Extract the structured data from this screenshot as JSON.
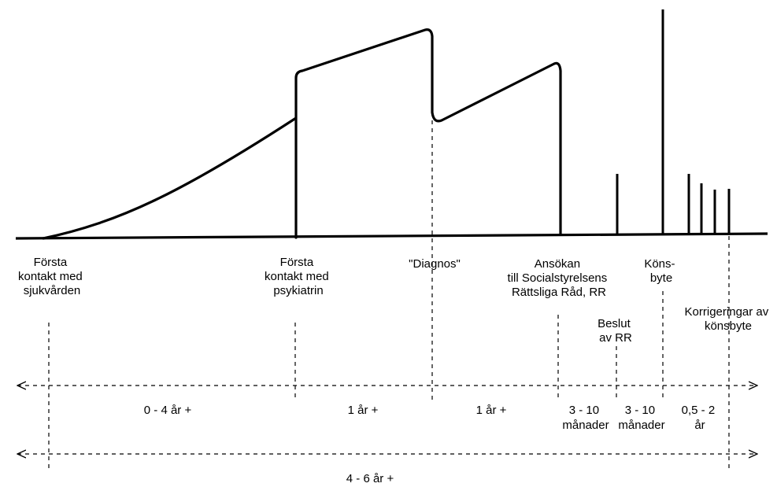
{
  "events": [
    {
      "id": "forsta-kontakt-sjukvarden",
      "lines": [
        "Första",
        "kontakt med",
        "sjukvården"
      ]
    },
    {
      "id": "forsta-kontakt-psykiatrin",
      "lines": [
        "Första",
        "kontakt med",
        "psykiatrin"
      ]
    },
    {
      "id": "diagnos",
      "lines": [
        "\"Diagnos\""
      ]
    },
    {
      "id": "ansokan",
      "lines": [
        "Ansökan",
        "till Socialstyrelsens",
        "Rättsliga Råd, RR"
      ]
    },
    {
      "id": "beslut",
      "lines": [
        "Beslut",
        "av RR"
      ]
    },
    {
      "id": "konsbyte",
      "lines": [
        "Köns-",
        "byte"
      ]
    },
    {
      "id": "korrigeringar",
      "lines": [
        "Korrigeringar av",
        "könsbyte"
      ]
    }
  ],
  "durations": [
    {
      "id": "d1",
      "lines": [
        "0 - 4 år +"
      ]
    },
    {
      "id": "d2",
      "lines": [
        "1 år +"
      ]
    },
    {
      "id": "d3",
      "lines": [
        "1 år +"
      ]
    },
    {
      "id": "d4",
      "lines": [
        "3 - 10",
        "månader"
      ]
    },
    {
      "id": "d5",
      "lines": [
        "3 - 10",
        "månader"
      ]
    },
    {
      "id": "d6",
      "lines": [
        "0,5 - 2",
        "år"
      ]
    }
  ],
  "total": {
    "lines": [
      "4 - 6 år +"
    ]
  }
}
